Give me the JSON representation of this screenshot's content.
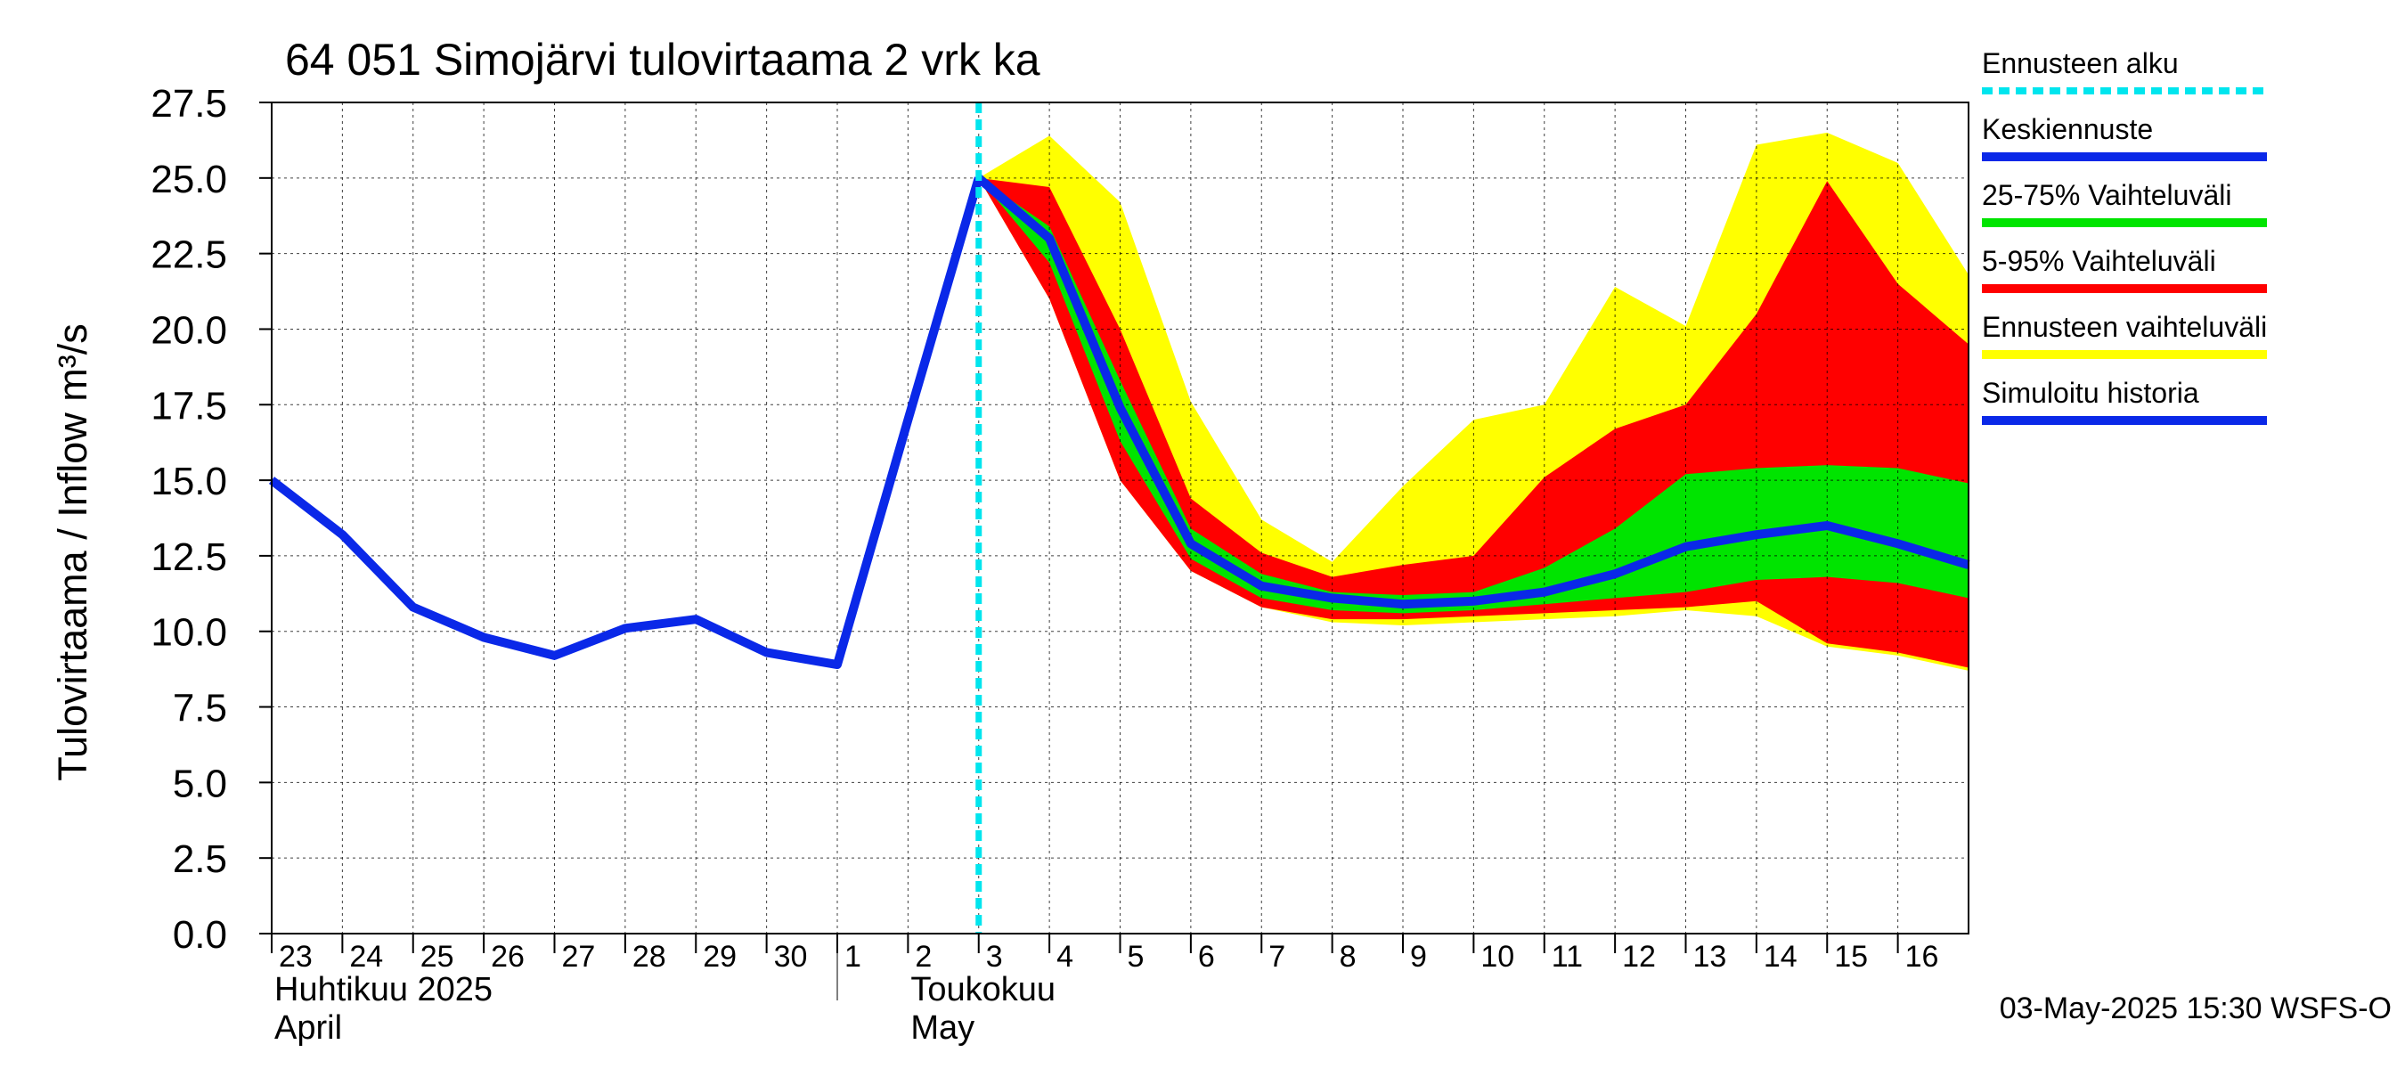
{
  "chart_data": {
    "type": "area",
    "title": "64 051 Simojärvi tulovirtaama 2 vrk ka",
    "ylabel": "Tulovirtaama / Inflow    m³/s",
    "ylim": [
      0,
      27.5
    ],
    "yticks": [
      "0.0",
      "2.5",
      "5.0",
      "7.5",
      "10.0",
      "12.5",
      "15.0",
      "17.5",
      "20.0",
      "22.5",
      "25.0",
      "27.5"
    ],
    "xlim": [
      0,
      24
    ],
    "day_labels": [
      {
        "x": 0,
        "label": "23"
      },
      {
        "x": 1,
        "label": "24"
      },
      {
        "x": 2,
        "label": "25"
      },
      {
        "x": 3,
        "label": "26"
      },
      {
        "x": 4,
        "label": "27"
      },
      {
        "x": 5,
        "label": "28"
      },
      {
        "x": 6,
        "label": "29"
      },
      {
        "x": 7,
        "label": "30"
      },
      {
        "x": 8,
        "label": "1"
      },
      {
        "x": 9,
        "label": "2"
      },
      {
        "x": 10,
        "label": "3"
      },
      {
        "x": 11,
        "label": "4"
      },
      {
        "x": 12,
        "label": "5"
      },
      {
        "x": 13,
        "label": "6"
      },
      {
        "x": 14,
        "label": "7"
      },
      {
        "x": 15,
        "label": "8"
      },
      {
        "x": 16,
        "label": "9"
      },
      {
        "x": 17,
        "label": "10"
      },
      {
        "x": 18,
        "label": "11"
      },
      {
        "x": 19,
        "label": "12"
      },
      {
        "x": 20,
        "label": "13"
      },
      {
        "x": 21,
        "label": "14"
      },
      {
        "x": 22,
        "label": "15"
      },
      {
        "x": 23,
        "label": "16"
      }
    ],
    "months": [
      {
        "x": 0,
        "line1": "Huhtikuu  2025",
        "line2": "April"
      },
      {
        "x": 9,
        "line1": "Toukokuu",
        "line2": "May"
      }
    ],
    "forecast_start_x": 10,
    "forecast_x": [
      10,
      11,
      12,
      13,
      14,
      15,
      16,
      17,
      18,
      19,
      20,
      21,
      22,
      23,
      24
    ],
    "bands": {
      "ennuste_upper": [
        25.0,
        26.4,
        24.2,
        17.6,
        13.7,
        12.3,
        14.8,
        17.0,
        17.5,
        21.4,
        20.1,
        26.1,
        26.5,
        25.5,
        21.8
      ],
      "ennuste_lower": [
        25.0,
        21.0,
        15.0,
        12.0,
        10.8,
        10.3,
        10.2,
        10.3,
        10.4,
        10.5,
        10.7,
        10.5,
        9.5,
        9.2,
        8.7
      ],
      "p95": [
        25.0,
        24.7,
        20.0,
        14.4,
        12.6,
        11.8,
        12.2,
        12.5,
        15.1,
        16.7,
        17.5,
        20.5,
        24.9,
        21.5,
        19.5
      ],
      "p5": [
        25.0,
        21.0,
        15.0,
        12.0,
        10.8,
        10.4,
        10.4,
        10.5,
        10.6,
        10.7,
        10.8,
        11.0,
        9.6,
        9.3,
        8.8
      ],
      "p75": [
        25.0,
        23.4,
        18.3,
        13.4,
        11.9,
        11.3,
        11.2,
        11.3,
        12.1,
        13.4,
        15.2,
        15.4,
        15.5,
        15.4,
        14.9
      ],
      "p25": [
        25.0,
        22.2,
        16.3,
        12.4,
        11.1,
        10.7,
        10.6,
        10.7,
        10.9,
        11.1,
        11.3,
        11.7,
        11.8,
        11.6,
        11.1
      ]
    },
    "series": [
      {
        "name": "Simuloitu historia",
        "x": [
          0,
          1,
          2,
          3,
          4,
          5,
          6,
          7,
          8,
          9,
          10
        ],
        "values": [
          15.0,
          13.2,
          10.8,
          9.8,
          9.2,
          10.1,
          10.4,
          9.3,
          8.9,
          17.0,
          25.0
        ]
      },
      {
        "name": "Keskiennuste",
        "x": [
          10,
          11,
          12,
          13,
          14,
          15,
          16,
          17,
          18,
          19,
          20,
          21,
          22,
          23,
          24
        ],
        "values": [
          25.0,
          23.0,
          17.4,
          12.9,
          11.5,
          11.1,
          10.9,
          11.0,
          11.3,
          11.9,
          12.8,
          13.2,
          13.5,
          12.9,
          12.2
        ]
      }
    ],
    "legend": {
      "placement": "right",
      "items": [
        {
          "label": "Ennusteen alku",
          "color": "#00e5ee",
          "style": "dashed"
        },
        {
          "label": "Keskiennuste",
          "color": "#0a28e8",
          "style": "solid"
        },
        {
          "label": "25-75% Vaihteluväli",
          "color": "#00e400",
          "style": "solid"
        },
        {
          "label": "5-95% Vaihteluväli",
          "color": "#ff0000",
          "style": "solid"
        },
        {
          "label": "Ennusteen vaihteluväli",
          "color": "#ffff00",
          "style": "solid"
        },
        {
          "label": "Simuloitu historia",
          "color": "#0a28e8",
          "style": "solid"
        }
      ]
    },
    "colors": {
      "ennuste": "#ffff00",
      "p5_95": "#ff0000",
      "p25_75": "#00e400",
      "line": "#0a28e8",
      "forecast_start": "#00e5ee"
    },
    "grid": true,
    "footer": "03-May-2025 15:30 WSFS-O"
  }
}
